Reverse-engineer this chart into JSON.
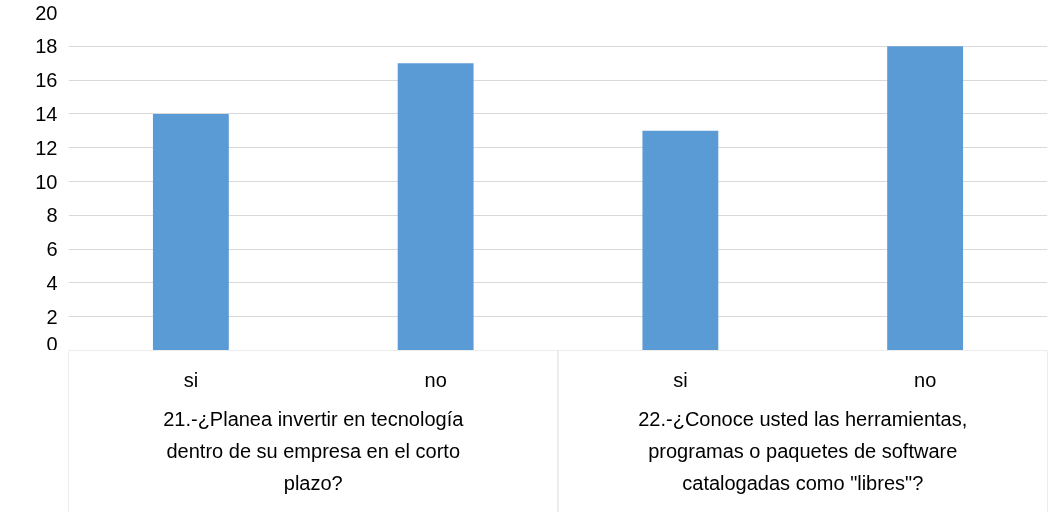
{
  "chart_data": {
    "type": "bar",
    "categories": [
      "si",
      "no",
      "si",
      "no"
    ],
    "values": [
      14,
      17,
      13,
      18
    ],
    "color": "#5b9bd5",
    "ylim": [
      0,
      20
    ],
    "yticks": [
      0,
      2,
      4,
      6,
      8,
      10,
      12,
      14,
      16,
      18,
      20
    ],
    "grid": "y",
    "annotations": [
      "21.-¿Planea invertir en tecnología dentro de su empresa en el corto plazo?",
      "22.-¿Conoce usted las herramientas, programas o paquetes de software catalogadas como \"libres\"?"
    ]
  }
}
